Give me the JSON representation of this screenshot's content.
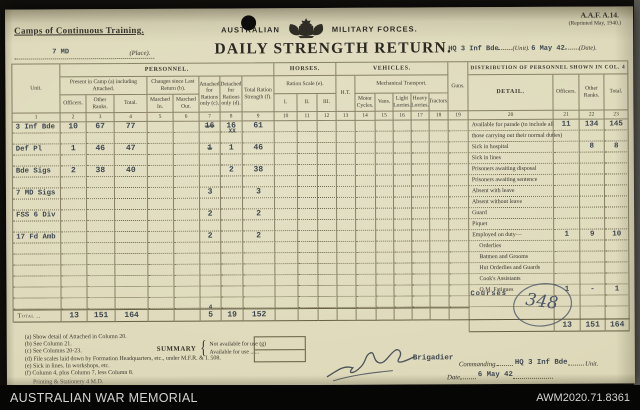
{
  "header": {
    "camps": "Camps of Continuous Training.",
    "form_no": "A.A.F. A.14.",
    "reprint": "(Reprinted May, 1940.)",
    "forces_left": "AUSTRALIAN",
    "forces_right": "MILITARY FORCES.",
    "place_value": "7 MD",
    "place_label": "(Place).",
    "title": "DAILY STRENGTH RETURN.",
    "unit_value": "HQ 3 Inf Bde",
    "unit_label": "(Unit).",
    "date_value": "6 May 42",
    "date_label": "(Date)."
  },
  "table": {
    "header": {
      "unit": "Unit.",
      "personnel": "PERSONNEL.",
      "present": "Present in Camp (a) including Attached.",
      "changes": "Changes since Last Return (b).",
      "attached": "Attached for Rations only (c).",
      "detached": "Detached for Rations only (d).",
      "total_ration": "Total Ration Strength (f).",
      "officers": "Officers.",
      "other_ranks": "Other Ranks.",
      "total": "Total.",
      "marched_in": "Marched In.",
      "marched_out": "Marched Out.",
      "horses": "HORSES.",
      "ration_scale": "Ration Scale (e).",
      "i": "I.",
      "ii": "II.",
      "iii": "III.",
      "vehicles": "VEHICLES.",
      "ht": "H.T.",
      "mech": "Mechanical Transport.",
      "motor_cycles": "Motor Cycles.",
      "vans": "Vans.",
      "light_lorries": "Light Lorries.",
      "heavy_lorries": "Heavy Lorries.",
      "tractors": "Tractors.",
      "guns": "Guns.",
      "distribution": "DISTRIBUTION OF PERSONNEL SHOWN IN COL. 4",
      "detail": "DETAIL.",
      "d_officers": "Officers.",
      "d_other_ranks": "Other Ranks.",
      "d_total": "Total."
    },
    "col_numbers": [
      "1",
      "2",
      "3",
      "4",
      "5",
      "6",
      "7",
      "8",
      "9",
      "10",
      "11",
      "12",
      "13",
      "14",
      "15",
      "16",
      "17",
      "18",
      "19",
      "20",
      "21",
      "22",
      "23"
    ],
    "unit_rows": [
      {
        "row": 0,
        "cells": {
          "0": "3 Inf Bde",
          "1": "10",
          "2": "67",
          "3": "77",
          "6": "16",
          "7": "16",
          "8": "61"
        },
        "struck": [
          "6"
        ],
        "over": {
          "7": "XX"
        }
      },
      {
        "row": 2,
        "cells": {
          "0": "Def Pl",
          "1": "1",
          "2": "46",
          "3": "47",
          "6": "1",
          "7": "1",
          "8": "46"
        },
        "struck": [
          "6"
        ]
      },
      {
        "row": 4,
        "cells": {
          "0": "Bde Sigs",
          "1": "2",
          "2": "38",
          "3": "40",
          "7": "2",
          "8": "38"
        }
      },
      {
        "row": 6,
        "cells": {
          "0": "7 MD Sigs",
          "6": "3",
          "8": "3"
        }
      },
      {
        "row": 8,
        "cells": {
          "0": "FSS 6 Div",
          "6": "2",
          "8": "2"
        }
      },
      {
        "row": 10,
        "cells": {
          "0": "17 Fd Amb",
          "6": "2",
          "8": "2"
        }
      }
    ],
    "total_row": {
      "label": "Total ..",
      "cells": {
        "1": "13",
        "2": "151",
        "3": "164",
        "6": "5",
        "7": "19",
        "8": "152"
      },
      "above": {
        "6": "4"
      }
    },
    "detail_rows": [
      {
        "label": "Available for parade (to include all",
        "o": "11",
        "r": "134",
        "t": "145"
      },
      {
        "label": "those carrying out their normal duties)"
      },
      {
        "label": "Sick in hospital",
        "r": "8",
        "t": "8"
      },
      {
        "label": "Sick in lines"
      },
      {
        "label": "Prisoners awaiting disposal"
      },
      {
        "label": "Prisoners awaiting sentence"
      },
      {
        "label": "Absent with leave"
      },
      {
        "label": "Absent without leave"
      },
      {
        "label": "Guard"
      },
      {
        "label": "Piquet"
      },
      {
        "label": "Employed on duty—",
        "o": "1",
        "r": "9",
        "t": "10"
      },
      {
        "label": "Orderlies",
        "indent": 1
      },
      {
        "label": "Batmen and Grooms",
        "indent": 1
      },
      {
        "label": "Hut Orderlies and Guards",
        "indent": 1
      },
      {
        "label": "Cook's Assistants",
        "indent": 1
      },
      {
        "label": "Q.M. Fatigues",
        "indent": 1,
        "typed": "Courses",
        "o": "1",
        "r": "-",
        "t": "1"
      },
      {
        "label": ""
      }
    ],
    "detail_total": {
      "o": "13",
      "r": "151",
      "t": "164"
    }
  },
  "footnotes": [
    "(a) Show detail of Attached in Column 20.",
    "(b) See Column 21.",
    "(c) See Columns 20-23.",
    "(d) File scales laid down by Formation Headquarters, etc., under M.F.R. & I. 508.",
    "(e) Sick in lines.  In workshops, etc.",
    "(f) Column 4, plus Column 7, less Column 8."
  ],
  "summary": {
    "label": "SUMMARY",
    "line1": "Not available for use (g)",
    "line2": "Available for use ......"
  },
  "signature": {
    "rank": "Brigadier",
    "commanding": "Commanding.",
    "unit_value": "HQ 3 Inf Bde",
    "unit_label": "Unit.",
    "date_label": "Date",
    "date_value": "6 May 42"
  },
  "stamp": {
    "number": "348"
  },
  "printing": "Printing & Stationery 4 M.D.",
  "archive": {
    "left": "AUSTRALIAN WAR MEMORIAL",
    "right": "AWM2020.71.8361"
  }
}
